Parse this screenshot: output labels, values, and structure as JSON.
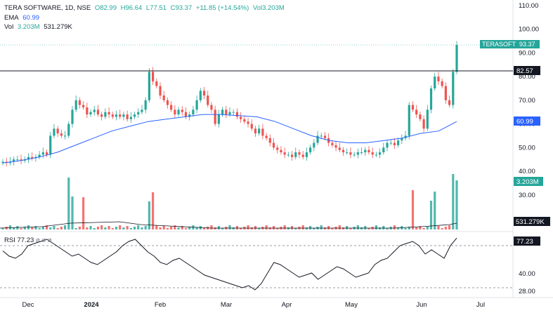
{
  "header": {
    "symbol_line": "TERA SOFTWARE, 1D, NSE",
    "open": "O82.99",
    "high": "H96.64",
    "low": "L77.51",
    "close": "C93.37",
    "change": "+11.85 (+14.54%)",
    "vol_inline": "Vol3.203M",
    "ema_label": "EMA",
    "ema_value": "60.99",
    "vol_label": "Vol",
    "vol_value": "3.203M",
    "vol_ma_value": "531.279K"
  },
  "rsi_header": {
    "label": "RSI",
    "value": "77.23",
    "extra": "ø  ø  ø"
  },
  "price_axis": [
    "110.00",
    "100.00",
    "90.00",
    "80.00",
    "70.00",
    "60.00",
    "50.00",
    "40.00",
    "30.00"
  ],
  "rsi_axis": [
    "40.00",
    "28.00"
  ],
  "time_axis": [
    "Dec",
    "2024",
    "Feb",
    "Mar",
    "Apr",
    "May",
    "Jun",
    "Jul"
  ],
  "badges": {
    "ticker_name": "TERASOFT",
    "ticker_price": "93.37",
    "hline_price": "82.57",
    "ema": "60.99",
    "volume": "3.203M",
    "volume_ma": "531.279K",
    "rsi": "77.23"
  },
  "colors": {
    "up": "#26a69a",
    "down": "#ef5350",
    "ema": "#2962ff",
    "hline": "#131722",
    "rsi": "#131722"
  },
  "chart_data": {
    "type": "candlestick",
    "horizontal_line": 82.57,
    "price_range": [
      30,
      110
    ],
    "candles_close_approx": [
      44,
      43.5,
      44,
      45,
      45,
      44.5,
      45,
      46,
      45.5,
      46,
      47,
      48,
      47,
      55,
      58,
      56,
      55,
      55,
      60,
      66,
      70,
      68,
      67,
      64,
      65,
      66,
      64,
      63,
      65,
      64,
      63,
      64,
      63,
      64,
      62,
      63,
      64,
      65,
      66,
      70,
      82,
      78,
      76,
      72,
      70,
      68,
      66,
      64,
      66,
      65,
      63,
      64,
      66,
      70,
      74,
      72,
      68,
      66,
      60,
      64,
      66,
      64,
      65,
      65,
      63,
      62,
      61,
      60,
      58,
      56,
      58,
      55,
      54,
      52,
      50,
      49,
      48,
      47,
      47,
      46,
      48,
      47,
      46,
      48,
      50,
      52,
      55,
      55,
      54,
      52,
      51,
      50,
      49,
      48,
      48,
      47,
      47,
      48,
      48,
      49,
      48,
      47,
      47,
      48,
      50,
      52,
      52,
      51,
      53,
      54,
      55,
      68,
      66,
      64,
      62,
      58,
      66,
      75,
      80,
      78,
      76,
      70,
      68,
      82,
      93.37
    ],
    "ema_values": [
      43.5,
      44.5,
      46,
      48,
      51,
      54,
      57,
      59,
      61,
      62,
      63,
      64,
      64,
      63.5,
      63,
      61,
      58,
      55,
      53,
      52,
      52,
      53,
      54,
      56,
      57,
      60.99
    ],
    "rsi_values": [
      65,
      60,
      58,
      62,
      70,
      72,
      74,
      76,
      72,
      68,
      64,
      60,
      62,
      58,
      54,
      52,
      56,
      60,
      64,
      70,
      74,
      76,
      70,
      64,
      60,
      54,
      52,
      56,
      58,
      54,
      50,
      46,
      42,
      40,
      38,
      36,
      34,
      32,
      30,
      32,
      28,
      34,
      44,
      54,
      52,
      48,
      44,
      40,
      42,
      44,
      38,
      42,
      46,
      50,
      48,
      44,
      40,
      42,
      44,
      52,
      56,
      58,
      64,
      70,
      72,
      74,
      70,
      62,
      66,
      62,
      58,
      70,
      77.23
    ]
  }
}
